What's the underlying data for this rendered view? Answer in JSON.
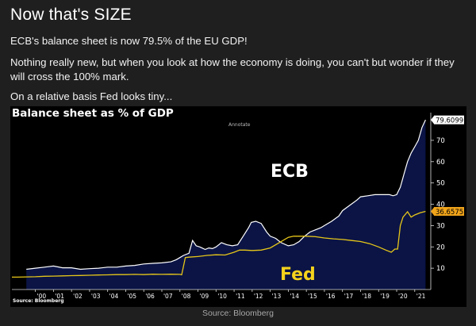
{
  "post": {
    "title": "Now that's SIZE",
    "paragraphs": [
      "ECB's balance sheet is now 79.5% of the EU GDP!",
      "Nothing really new, but when you look at how the economy is doing, you can't but wonder if they will cross the 100% mark.",
      "On a relative basis Fed looks tiny..."
    ],
    "caption": "Source: Bloomberg"
  },
  "chart": {
    "annotate_label": "Annotate",
    "source_label": "Source: Bloomberg"
  },
  "chart_data": {
    "type": "line",
    "title": "Balance sheet as % of GDP",
    "xlabel": "",
    "ylabel": "",
    "x_tick_labels": [
      "'00",
      "'01",
      "'02",
      "'03",
      "'04",
      "'05",
      "'06",
      "'07",
      "'08",
      "'09",
      "'10",
      "'11",
      "'12",
      "'13",
      "'14",
      "'15",
      "'16",
      "'17",
      "'18",
      "'19",
      "'20",
      "'21"
    ],
    "y_ticks": [
      10,
      20,
      30,
      40,
      50,
      60,
      70
    ],
    "ylim": [
      0,
      83
    ],
    "xlim": [
      1998.7,
      2021.8
    ],
    "grid": false,
    "series": [
      {
        "name": "ECB",
        "color": "#ffffff",
        "fill": "#0b1445",
        "last_value": "79.6099",
        "x": [
          1999.5,
          2000,
          2000.5,
          2001,
          2001.5,
          2002,
          2002.5,
          2003,
          2003.5,
          2004,
          2004.5,
          2005,
          2005.5,
          2006,
          2006.5,
          2007,
          2007.5,
          2007.8,
          2008,
          2008.2,
          2008.5,
          2008.7,
          2008.9,
          2009.1,
          2009.4,
          2009.6,
          2009.8,
          2010,
          2010.3,
          2010.6,
          2010.9,
          2011.2,
          2011.5,
          2011.8,
          2011.95,
          2012.2,
          2012.5,
          2012.8,
          2013,
          2013.3,
          2013.6,
          2014,
          2014.3,
          2014.6,
          2014.9,
          2015.2,
          2015.5,
          2015.8,
          2016,
          2016.4,
          2016.8,
          2017,
          2017.4,
          2017.8,
          2018,
          2018.4,
          2018.8,
          2019,
          2019.4,
          2019.6,
          2019.8,
          2020,
          2020.2,
          2020.4,
          2020.6,
          2020.8,
          2021,
          2021.2,
          2021.4,
          2021.6
        ],
        "y": [
          9.5,
          10,
          10.5,
          11,
          10.2,
          10.2,
          9.5,
          9.8,
          10,
          10.5,
          10.5,
          11,
          11.3,
          12,
          12.3,
          12.5,
          13,
          14,
          15,
          16,
          17,
          23,
          20.5,
          20,
          18.8,
          19.5,
          19.2,
          20,
          22,
          21,
          20.5,
          21,
          25,
          29,
          31.5,
          32,
          31,
          27,
          25,
          24,
          22,
          20.5,
          21,
          22.5,
          25,
          27,
          28,
          29,
          30,
          32,
          34.5,
          37,
          39.5,
          42,
          43.5,
          44,
          44.5,
          44.5,
          44.5,
          44.5,
          44,
          44.5,
          48,
          54,
          60,
          64,
          67,
          70,
          76,
          79.6
        ]
      },
      {
        "name": "Fed",
        "color": "#e6c619",
        "last_value": "36.6575",
        "x": [
          1998.7,
          1999,
          1999.5,
          2000,
          2000.5,
          2001,
          2001.5,
          2002,
          2002.5,
          2003,
          2003.5,
          2004,
          2004.5,
          2005,
          2005.5,
          2006,
          2006.5,
          2007,
          2007.5,
          2008,
          2008.1,
          2008.3,
          2008.5,
          2009,
          2009.5,
          2010,
          2010.5,
          2011,
          2011.3,
          2011.6,
          2012,
          2012.5,
          2013,
          2013.5,
          2014,
          2014.3,
          2014.6,
          2015,
          2015.5,
          2016,
          2016.5,
          2017,
          2017.5,
          2018,
          2018.5,
          2019,
          2019.4,
          2019.7,
          2019.9,
          2020.05,
          2020.2,
          2020.35,
          2020.6,
          2020.8,
          2021,
          2021.3,
          2021.6
        ],
        "y": [
          5.8,
          5.8,
          5.9,
          6,
          6.2,
          6.3,
          6.4,
          6.5,
          6.6,
          6.7,
          6.8,
          6.9,
          7,
          7,
          7.1,
          7,
          7.2,
          7.1,
          7.2,
          7.1,
          6.9,
          15,
          15.2,
          15.5,
          16,
          16.3,
          16.2,
          17.5,
          18.5,
          18.5,
          18.3,
          18.5,
          19.5,
          22,
          24.5,
          25,
          25,
          25,
          24.8,
          24.2,
          23.8,
          23.5,
          23,
          22.5,
          21.5,
          20,
          18.5,
          17.5,
          19,
          19,
          30,
          34,
          36.5,
          34,
          35,
          36,
          36.66
        ]
      }
    ],
    "annotations": [
      {
        "text": "ECB",
        "color": "#ffffff"
      },
      {
        "text": "Fed",
        "color": "#f5d21c"
      }
    ]
  }
}
